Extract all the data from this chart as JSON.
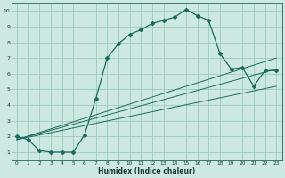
{
  "xlabel": "Humidex (Indice chaleur)",
  "bg_color": "#cce8e0",
  "grid_color": "#99ccbb",
  "line_color": "#1a6b5a",
  "xlim": [
    -0.5,
    23.5
  ],
  "ylim": [
    0.5,
    10.5
  ],
  "xticks": [
    0,
    1,
    2,
    3,
    4,
    5,
    6,
    7,
    8,
    9,
    10,
    11,
    12,
    13,
    14,
    15,
    16,
    17,
    18,
    19,
    20,
    21,
    22,
    23
  ],
  "yticks": [
    1,
    2,
    3,
    4,
    5,
    6,
    7,
    8,
    9,
    10
  ],
  "line1_x": [
    0,
    1,
    2,
    3,
    4,
    5,
    6,
    7,
    8,
    9,
    10,
    11,
    12,
    13,
    14,
    15,
    16,
    17,
    18,
    19,
    20,
    21,
    22,
    23
  ],
  "line1_y": [
    2.0,
    1.8,
    1.1,
    1.0,
    1.0,
    1.0,
    2.1,
    4.4,
    7.0,
    7.9,
    8.5,
    8.8,
    9.2,
    9.4,
    9.6,
    10.1,
    9.7,
    9.4,
    7.3,
    6.3,
    6.4,
    5.2,
    6.2,
    6.2
  ],
  "straight_lines": [
    {
      "x": [
        0,
        23
      ],
      "y": [
        1.8,
        7.0
      ]
    },
    {
      "x": [
        0,
        23
      ],
      "y": [
        1.8,
        6.3
      ]
    },
    {
      "x": [
        0,
        23
      ],
      "y": [
        1.8,
        5.2
      ]
    }
  ],
  "figsize": [
    3.2,
    2.0
  ],
  "dpi": 100
}
